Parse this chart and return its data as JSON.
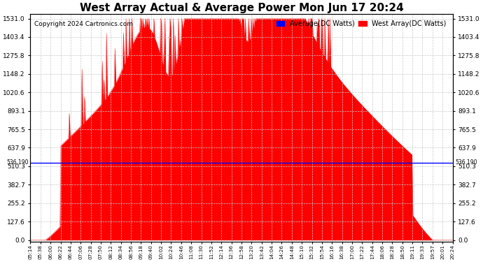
{
  "title": "West Array Actual & Average Power Mon Jun 17 20:24",
  "copyright": "Copyright 2024 Cartronics.com",
  "legend_average": "Average(DC Watts)",
  "legend_west": "West Array(DC Watts)",
  "avg_line_value": 536.19,
  "avg_label": "536.190",
  "ymax": 1531.0,
  "ymin": 0.0,
  "yticks": [
    0.0,
    127.6,
    255.2,
    382.7,
    510.3,
    637.9,
    765.5,
    893.1,
    1020.6,
    1148.2,
    1275.8,
    1403.4,
    1531.0
  ],
  "bg_color": "#ffffff",
  "fill_color": "#ff0000",
  "avg_line_color": "#0000ff",
  "grid_color": "#c8c8c8",
  "time_labels": [
    "05:14",
    "05:38",
    "06:00",
    "06:22",
    "06:44",
    "07:06",
    "07:28",
    "07:50",
    "08:12",
    "08:34",
    "08:56",
    "09:18",
    "09:40",
    "10:02",
    "10:24",
    "10:46",
    "11:08",
    "11:30",
    "11:52",
    "12:14",
    "12:36",
    "12:58",
    "13:20",
    "13:42",
    "14:04",
    "14:26",
    "14:48",
    "15:10",
    "15:32",
    "15:54",
    "16:16",
    "16:38",
    "17:00",
    "17:22",
    "17:44",
    "18:06",
    "18:28",
    "18:50",
    "19:11",
    "19:33",
    "19:57",
    "20:01",
    "20:24"
  ]
}
